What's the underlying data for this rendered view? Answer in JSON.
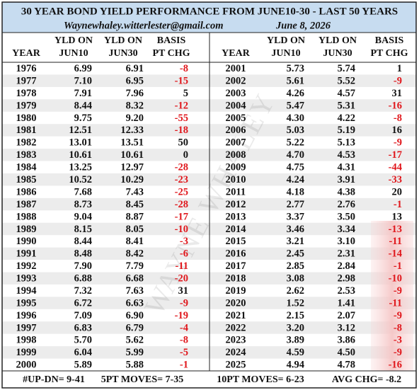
{
  "header": {
    "title": "30 YEAR BOND YIELD PERFORMANCE FROM  JUNE10-30  -  LAST 50 YEARS",
    "email": "Waynewhaley.witterlester@gmail.com",
    "date": "June 8, 2026"
  },
  "watermark": "WAYNE WHALEY",
  "columns": [
    [
      "YEAR"
    ],
    [
      "YLD ON",
      "JUN10"
    ],
    [
      "YLD ON",
      "JUN30"
    ],
    [
      "BASIS",
      "PT CHG"
    ]
  ],
  "table": {
    "left_rows": [
      [
        "1976",
        "6.99",
        "6.91",
        "-8"
      ],
      [
        "1977",
        "7.10",
        "6.95",
        "-15"
      ],
      [
        "1978",
        "7.91",
        "7.96",
        "5"
      ],
      [
        "1979",
        "8.44",
        "8.32",
        "-12"
      ],
      [
        "1980",
        "9.75",
        "9.20",
        "-55"
      ],
      [
        "1981",
        "12.51",
        "12.33",
        "-18"
      ],
      [
        "1982",
        "13.01",
        "13.51",
        "50"
      ],
      [
        "1983",
        "10.61",
        "10.61",
        "0"
      ],
      [
        "1984",
        "13.25",
        "12.97",
        "-28"
      ],
      [
        "1985",
        "10.52",
        "10.29",
        "-23"
      ],
      [
        "1986",
        "7.68",
        "7.43",
        "-25"
      ],
      [
        "1987",
        "8.73",
        "8.45",
        "-28"
      ],
      [
        "1988",
        "9.04",
        "8.87",
        "-17"
      ],
      [
        "1989",
        "8.15",
        "8.05",
        "-10"
      ],
      [
        "1990",
        "8.44",
        "8.41",
        "-3"
      ],
      [
        "1991",
        "8.48",
        "8.42",
        "-6"
      ],
      [
        "1992",
        "7.90",
        "7.79",
        "-11"
      ],
      [
        "1993",
        "6.88",
        "6.68",
        "-20"
      ],
      [
        "1994",
        "7.32",
        "7.63",
        "31"
      ],
      [
        "1995",
        "6.72",
        "6.63",
        "-9"
      ],
      [
        "1996",
        "7.09",
        "6.90",
        "-19"
      ],
      [
        "1997",
        "6.83",
        "6.79",
        "-4"
      ],
      [
        "1998",
        "5.70",
        "5.62",
        "-8"
      ],
      [
        "1999",
        "6.04",
        "5.99",
        "-5"
      ],
      [
        "2000",
        "5.89",
        "5.88",
        "-1"
      ]
    ],
    "right_rows": [
      [
        "2001",
        "5.73",
        "5.74",
        "1"
      ],
      [
        "2002",
        "5.61",
        "5.52",
        "-9"
      ],
      [
        "2003",
        "4.26",
        "4.57",
        "31"
      ],
      [
        "2004",
        "5.47",
        "5.31",
        "-16"
      ],
      [
        "2005",
        "4.30",
        "4.22",
        "-8"
      ],
      [
        "2006",
        "5.03",
        "5.19",
        "16"
      ],
      [
        "2007",
        "5.22",
        "5.13",
        "-9"
      ],
      [
        "2008",
        "4.70",
        "4.53",
        "-17"
      ],
      [
        "2009",
        "4.75",
        "4.31",
        "-44"
      ],
      [
        "2010",
        "4.24",
        "3.91",
        "-33"
      ],
      [
        "2011",
        "4.18",
        "4.38",
        "20"
      ],
      [
        "2012",
        "2.77",
        "2.76",
        "-1"
      ],
      [
        "2013",
        "3.37",
        "3.50",
        "13"
      ],
      [
        "2014",
        "3.46",
        "3.34",
        "-13"
      ],
      [
        "2015",
        "3.21",
        "3.10",
        "-11"
      ],
      [
        "2016",
        "2.45",
        "2.31",
        "-14"
      ],
      [
        "2017",
        "2.85",
        "2.84",
        "-1"
      ],
      [
        "2018",
        "3.08",
        "2.98",
        "-10"
      ],
      [
        "2019",
        "2.62",
        "2.53",
        "-9"
      ],
      [
        "2020",
        "1.52",
        "1.41",
        "-11"
      ],
      [
        "2021",
        "2.15",
        "2.07",
        "-9"
      ],
      [
        "2022",
        "3.20",
        "3.12",
        "-8"
      ],
      [
        "2023",
        "3.89",
        "3.86",
        "-3"
      ],
      [
        "2024",
        "4.59",
        "4.50",
        "-9"
      ],
      [
        "2025",
        "4.94",
        "4.78",
        "-16"
      ]
    ]
  },
  "footer": [
    "#UP-DN= 9-41",
    "5PT MOVES= 7-35",
    "10PT MOVES= 6-23",
    "AVG CHG= -8.2"
  ]
}
